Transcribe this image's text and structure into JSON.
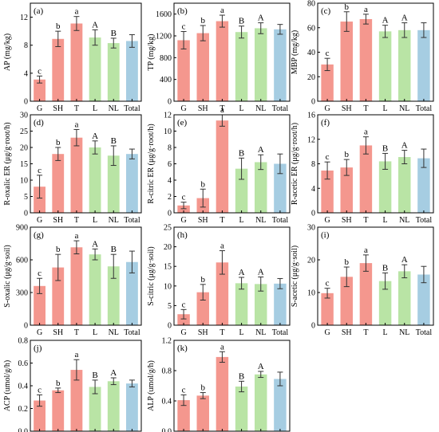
{
  "colors": {
    "G": "#f4978e",
    "SH": "#f4978e",
    "T": "#f4978e",
    "L": "#b9e4a5",
    "NL": "#b9e4a5",
    "Total": "#a6cde2",
    "error": "#333333",
    "axis": "#000000"
  },
  "chart_data": [
    {
      "type": "bar",
      "panel": "(a)",
      "ylabel": "AP (mg/kg)",
      "ylim": [
        0,
        14
      ],
      "yticks": [
        0,
        4,
        8,
        12
      ],
      "categories": [
        "G",
        "SH",
        "T",
        "L",
        "NL",
        "Total"
      ],
      "values": [
        3.1,
        8.9,
        11.1,
        9.1,
        8.3,
        8.6
      ],
      "errors": [
        0.5,
        1.1,
        1.0,
        1.1,
        0.7,
        0.9
      ],
      "letters": [
        "c",
        "b",
        "a",
        "A",
        "B",
        ""
      ]
    },
    {
      "type": "bar",
      "panel": "(b)",
      "ylabel": "TP (mg/kg)",
      "ylim": [
        0,
        1800
      ],
      "yticks": [
        0,
        400,
        800,
        1200,
        1600
      ],
      "categories": [
        "G",
        "SH",
        "T",
        "L",
        "NL",
        "Total"
      ],
      "values": [
        1120,
        1250,
        1470,
        1270,
        1340,
        1320
      ],
      "errors": [
        160,
        140,
        110,
        110,
        100,
        90
      ],
      "letters": [
        "c",
        "b",
        "a",
        "B",
        "A",
        ""
      ]
    },
    {
      "type": "bar",
      "panel": "(c)",
      "ylabel": "MBP (mg/kg)",
      "ylim": [
        0,
        80
      ],
      "yticks": [
        0,
        20,
        40,
        60,
        80
      ],
      "categories": [
        "G",
        "SH",
        "T",
        "L",
        "NL",
        "Total"
      ],
      "values": [
        30,
        65,
        67,
        57,
        58,
        58
      ],
      "errors": [
        5,
        8,
        4,
        5,
        6,
        6
      ],
      "letters": [
        "c",
        "b",
        "a",
        "A",
        "A",
        ""
      ]
    },
    {
      "type": "bar",
      "panel": "(d)",
      "ylabel": "R-oxalic ER (μg/g·root/h)",
      "ylim": [
        0,
        30
      ],
      "yticks": [
        0,
        5,
        10,
        15,
        20,
        25,
        30
      ],
      "categories": [
        "G",
        "SH",
        "T",
        "L",
        "NL",
        "Total"
      ],
      "values": [
        8,
        18,
        23,
        20,
        17.5,
        18
      ],
      "errors": [
        3.5,
        2,
        2.5,
        2,
        3,
        1.5
      ],
      "letters": [
        "c",
        "b",
        "a",
        "A",
        "B",
        ""
      ]
    },
    {
      "type": "bar",
      "panel": "(e)",
      "ylabel": "R-citric ER (μg/g·root/h)",
      "ylim": [
        0,
        12
      ],
      "yticks": [
        0,
        2,
        4,
        6,
        8,
        10,
        12
      ],
      "categories": [
        "G",
        "SH",
        "T",
        "L",
        "NL",
        "Total"
      ],
      "values": [
        0.9,
        1.8,
        11.3,
        5.4,
        6.2,
        6.0
      ],
      "errors": [
        0.4,
        1.1,
        0.7,
        1.3,
        0.9,
        1.2
      ],
      "letters": [
        "c",
        "b",
        "a",
        "B",
        "A",
        ""
      ]
    },
    {
      "type": "bar",
      "panel": "(f)",
      "ylabel": "R-acetic ER (μg/g·root/h)",
      "ylim": [
        0,
        16
      ],
      "yticks": [
        0,
        4,
        8,
        12,
        16
      ],
      "categories": [
        "G",
        "SH",
        "T",
        "L",
        "NL",
        "Total"
      ],
      "values": [
        6.9,
        7.4,
        11,
        8.4,
        9.1,
        8.9
      ],
      "errors": [
        1.4,
        1.3,
        1.4,
        1.3,
        1.1,
        1.5
      ],
      "letters": [
        "c",
        "b",
        "a",
        "B",
        "A",
        ""
      ]
    },
    {
      "type": "bar",
      "panel": "(g)",
      "ylabel": "S-oxalic (μg/g·soil)",
      "ylim": [
        0,
        900
      ],
      "yticks": [
        0,
        300,
        600,
        900
      ],
      "categories": [
        "G",
        "SH",
        "T",
        "L",
        "NL",
        "Total"
      ],
      "values": [
        360,
        530,
        715,
        650,
        540,
        580
      ],
      "errors": [
        70,
        120,
        60,
        50,
        110,
        100
      ],
      "letters": [
        "c",
        "b",
        "a",
        "A",
        "B",
        ""
      ]
    },
    {
      "type": "bar",
      "panel": "(h)",
      "ylabel": "S-citric (μg/g·soil)",
      "ylim": [
        0,
        25
      ],
      "yticks": [
        0,
        5,
        10,
        15,
        20,
        25
      ],
      "categories": [
        "G",
        "SH",
        "T",
        "L",
        "NL",
        "Total"
      ],
      "values": [
        2.8,
        8.4,
        16,
        10.7,
        10.5,
        10.6
      ],
      "errors": [
        1.2,
        2,
        3,
        1.5,
        1.8,
        1.3
      ],
      "letters": [
        "c",
        "b",
        "a",
        "A",
        "A",
        ""
      ]
    },
    {
      "type": "bar",
      "panel": "(i)",
      "ylabel": "S-acetic (μg/g·soil)",
      "ylim": [
        0,
        30
      ],
      "yticks": [
        0,
        10,
        20,
        30
      ],
      "categories": [
        "G",
        "SH",
        "T",
        "L",
        "NL",
        "Total"
      ],
      "values": [
        9.8,
        14.8,
        19,
        13.5,
        16.5,
        15.5
      ],
      "errors": [
        1.5,
        3,
        2.5,
        2.5,
        2,
        2.5
      ],
      "letters": [
        "c",
        "b",
        "a",
        "B",
        "A",
        ""
      ]
    },
    {
      "type": "bar",
      "panel": "(j)",
      "ylabel": "ACP (umol/g/h)",
      "ylim": [
        0,
        0.8
      ],
      "yticks": [
        0.0,
        0.2,
        0.4,
        0.6,
        0.8
      ],
      "categories": [
        "G",
        "SH",
        "T",
        "L",
        "NL",
        "Total"
      ],
      "values": [
        0.27,
        0.36,
        0.54,
        0.39,
        0.44,
        0.42
      ],
      "errors": [
        0.05,
        0.02,
        0.09,
        0.06,
        0.03,
        0.03
      ],
      "letters": [
        "c",
        "b",
        "a",
        "B",
        "A",
        ""
      ]
    },
    {
      "type": "bar",
      "panel": "(k)",
      "ylabel": "ALP (umol/g/h)",
      "ylim": [
        0,
        1.2
      ],
      "yticks": [
        0.0,
        0.4,
        0.8,
        1.2
      ],
      "categories": [
        "G",
        "SH",
        "T",
        "L",
        "NL",
        "Total"
      ],
      "values": [
        0.41,
        0.47,
        0.98,
        0.59,
        0.75,
        0.69
      ],
      "errors": [
        0.07,
        0.04,
        0.07,
        0.07,
        0.04,
        0.09
      ],
      "letters": [
        "c",
        "b",
        "a",
        "B",
        "A",
        ""
      ]
    }
  ]
}
